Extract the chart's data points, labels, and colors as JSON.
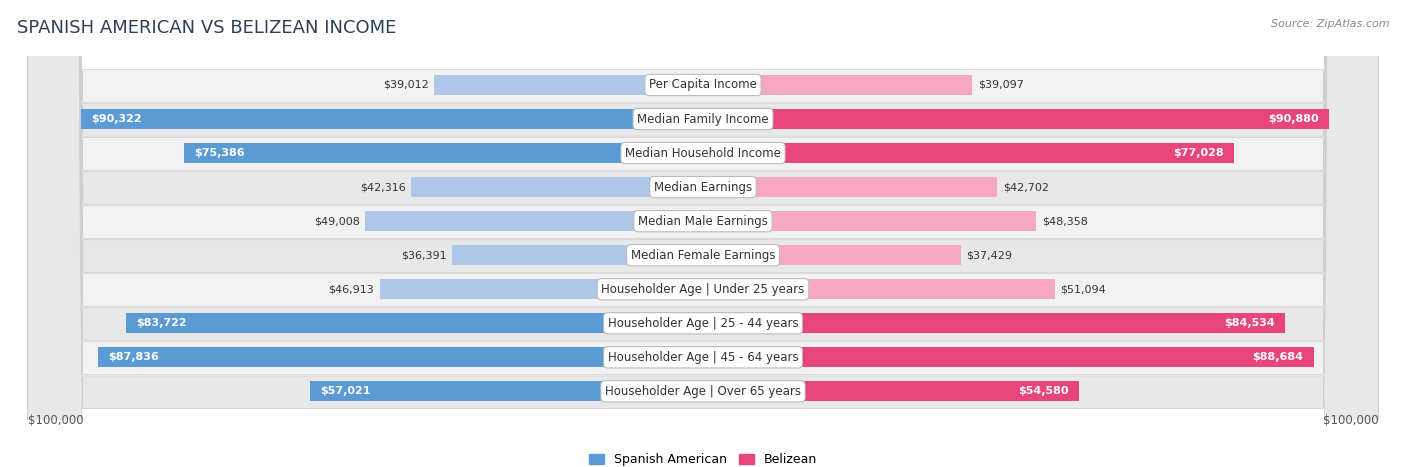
{
  "title": "SPANISH AMERICAN VS BELIZEAN INCOME",
  "source": "Source: ZipAtlas.com",
  "categories": [
    "Per Capita Income",
    "Median Family Income",
    "Median Household Income",
    "Median Earnings",
    "Median Male Earnings",
    "Median Female Earnings",
    "Householder Age | Under 25 years",
    "Householder Age | 25 - 44 years",
    "Householder Age | 45 - 64 years",
    "Householder Age | Over 65 years"
  ],
  "spanish_american": [
    39012,
    90322,
    75386,
    42316,
    49008,
    36391,
    46913,
    83722,
    87836,
    57021
  ],
  "belizean": [
    39097,
    90880,
    77028,
    42702,
    48358,
    37429,
    51094,
    84534,
    88684,
    54580
  ],
  "max_val": 100000,
  "spanish_light": "#aec6e8",
  "spanish_dark": "#5b9bd5",
  "belizean_light": "#f5a8c0",
  "belizean_dark": "#e8457a",
  "inside_threshold": 0.52,
  "bg_color": "#ffffff",
  "row_even": "#f2f2f2",
  "row_odd": "#e8e8e8",
  "title_color": "#2e4057",
  "source_color": "#888888",
  "label_fontsize": 8.5,
  "value_fontsize": 8.0,
  "title_fontsize": 13
}
